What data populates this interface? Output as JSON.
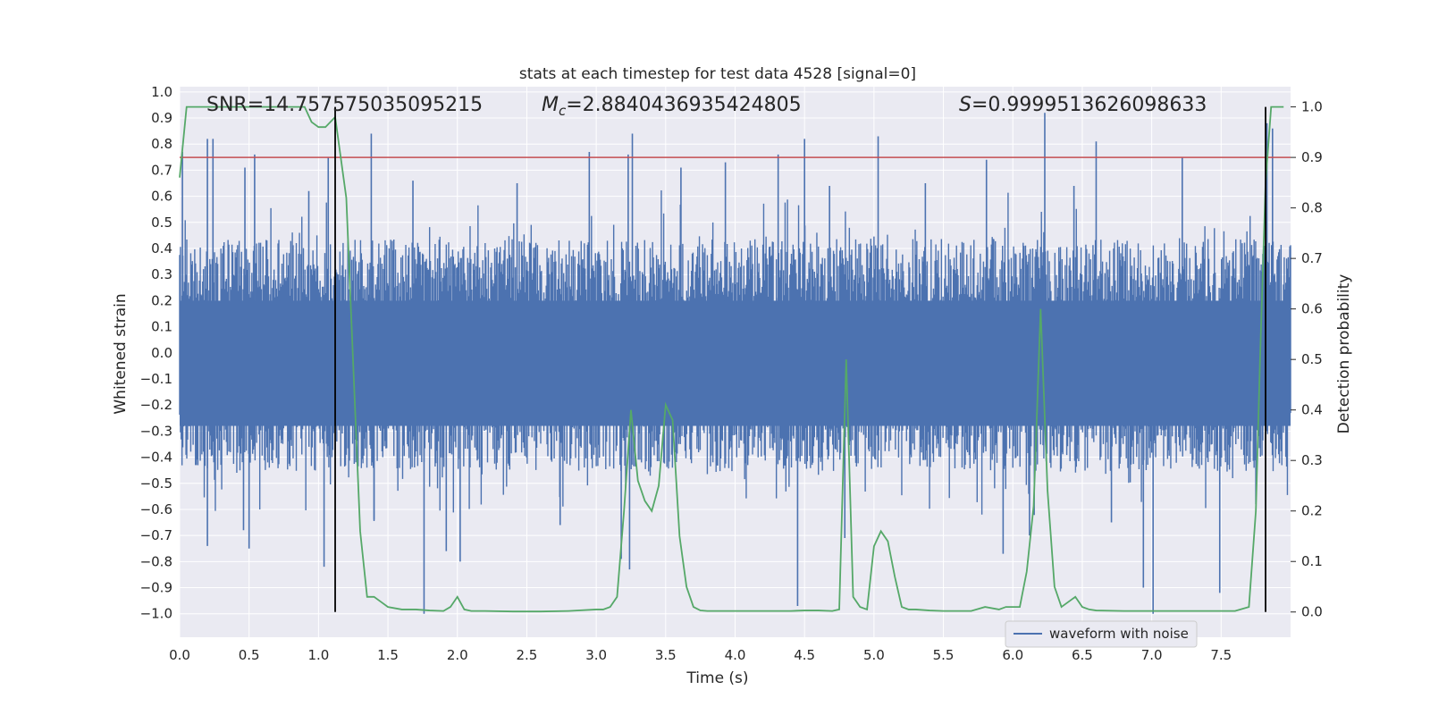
{
  "chart_data": {
    "type": "line",
    "title": "stats at each timestep for test data 4528 [signal=0]",
    "xlabel": "Time (s)",
    "ylabel_left": "Whitened strain",
    "ylabel_right": "Detection probability",
    "xlim": [
      0.0,
      8.0
    ],
    "ylim_left": [
      -1.09,
      1.02
    ],
    "ylim_right": [
      -0.05,
      1.04
    ],
    "x_ticks": [
      "0.0",
      "0.5",
      "1.0",
      "1.5",
      "2.0",
      "2.5",
      "3.0",
      "3.5",
      "4.0",
      "4.5",
      "5.0",
      "5.5",
      "6.0",
      "6.5",
      "7.0",
      "7.5"
    ],
    "y_ticks_left": [
      "1.0",
      "0.9",
      "0.8",
      "0.7",
      "0.6",
      "0.5",
      "0.4",
      "0.3",
      "0.2",
      "0.1",
      "0.0",
      "−0.1",
      "−0.2",
      "−0.3",
      "−0.4",
      "−0.5",
      "−0.6",
      "−0.7",
      "−0.8",
      "−0.9",
      "−1.0"
    ],
    "y_ticks_right": [
      "1.0",
      "0.9",
      "0.8",
      "0.7",
      "0.6",
      "0.5",
      "0.4",
      "0.3",
      "0.2",
      "0.1",
      "0.0"
    ],
    "grid": true,
    "legend": {
      "placement": "lower-right",
      "entries": [
        "waveform with noise"
      ]
    },
    "annotations": {
      "snr": "SNR=14.757575035095215",
      "mc_symbol": "M",
      "mc_subscript": "c",
      "mc_value": "=2.8840436935424805",
      "s_symbol": "S",
      "s_value": "=0.9999513626098633"
    },
    "threshold_probability": 0.9,
    "vertical_markers_time": [
      1.12,
      7.82
    ],
    "series": [
      {
        "name": "waveform with noise",
        "axis": "left",
        "color": "#4c72b0",
        "envelope_typical": 0.35,
        "spikes": [
          [
            0.02,
            0.77
          ],
          [
            0.2,
            0.82
          ],
          [
            0.24,
            0.82
          ],
          [
            0.2,
            -0.74
          ],
          [
            0.46,
            -0.68
          ],
          [
            0.47,
            0.71
          ],
          [
            0.5,
            -0.75
          ],
          [
            0.54,
            0.76
          ],
          [
            0.93,
            0.62
          ],
          [
            1.04,
            -0.82
          ],
          [
            1.07,
            0.75
          ],
          [
            1.38,
            0.84
          ],
          [
            1.4,
            -0.64
          ],
          [
            1.68,
            0.66
          ],
          [
            1.76,
            -1.0
          ],
          [
            1.92,
            -0.76
          ],
          [
            2.02,
            -0.8
          ],
          [
            2.43,
            0.65
          ],
          [
            2.74,
            -0.66
          ],
          [
            2.95,
            0.77
          ],
          [
            3.18,
            -0.79
          ],
          [
            3.23,
            0.76
          ],
          [
            3.24,
            -0.83
          ],
          [
            3.26,
            0.84
          ],
          [
            3.61,
            0.71
          ],
          [
            3.93,
            0.73
          ],
          [
            4.31,
            0.76
          ],
          [
            4.45,
            -0.97
          ],
          [
            4.5,
            0.82
          ],
          [
            4.68,
            0.64
          ],
          [
            4.79,
            -0.71
          ],
          [
            5.03,
            0.83
          ],
          [
            5.37,
            0.65
          ],
          [
            5.81,
            0.74
          ],
          [
            5.93,
            -0.77
          ],
          [
            6.12,
            -0.7
          ],
          [
            6.23,
            0.92
          ],
          [
            6.44,
            0.64
          ],
          [
            6.6,
            0.81
          ],
          [
            6.71,
            -0.65
          ],
          [
            6.94,
            -0.9
          ],
          [
            7.01,
            -1.0
          ],
          [
            7.22,
            0.75
          ],
          [
            7.49,
            -0.92
          ],
          [
            7.83,
            0.88
          ],
          [
            7.87,
            0.86
          ],
          [
            7.75,
            -0.58
          ]
        ]
      },
      {
        "name": "",
        "axis": "right",
        "color": "#55a868",
        "x": [
          0.0,
          0.05,
          0.1,
          0.2,
          0.3,
          0.4,
          0.5,
          0.6,
          0.7,
          0.8,
          0.9,
          0.95,
          1.0,
          1.05,
          1.12,
          1.2,
          1.3,
          1.35,
          1.4,
          1.45,
          1.5,
          1.6,
          1.7,
          1.8,
          1.9,
          1.95,
          2.0,
          2.05,
          2.1,
          2.2,
          2.4,
          2.6,
          2.8,
          3.0,
          3.05,
          3.1,
          3.15,
          3.2,
          3.25,
          3.3,
          3.35,
          3.4,
          3.45,
          3.5,
          3.55,
          3.6,
          3.65,
          3.7,
          3.75,
          3.8,
          3.9,
          4.0,
          4.2,
          4.4,
          4.5,
          4.6,
          4.7,
          4.75,
          4.8,
          4.85,
          4.9,
          4.95,
          5.0,
          5.05,
          5.1,
          5.15,
          5.2,
          5.25,
          5.3,
          5.4,
          5.5,
          5.7,
          5.8,
          5.9,
          5.95,
          6.05,
          6.1,
          6.15,
          6.2,
          6.25,
          6.3,
          6.35,
          6.4,
          6.45,
          6.5,
          6.55,
          6.6,
          6.8,
          7.0,
          7.2,
          7.4,
          7.6,
          7.7,
          7.75,
          7.78,
          7.82,
          7.86,
          7.9,
          7.95
        ],
        "values": [
          0.86,
          1.0,
          1.0,
          1.0,
          1.0,
          1.0,
          1.0,
          1.0,
          1.0,
          1.0,
          1.0,
          0.97,
          0.96,
          0.96,
          0.98,
          0.82,
          0.16,
          0.03,
          0.03,
          0.02,
          0.01,
          0.005,
          0.005,
          0.003,
          0.002,
          0.01,
          0.03,
          0.005,
          0.002,
          0.002,
          0.001,
          0.001,
          0.002,
          0.005,
          0.005,
          0.01,
          0.03,
          0.2,
          0.4,
          0.26,
          0.22,
          0.2,
          0.25,
          0.41,
          0.38,
          0.15,
          0.05,
          0.01,
          0.003,
          0.002,
          0.002,
          0.002,
          0.002,
          0.002,
          0.003,
          0.003,
          0.002,
          0.005,
          0.5,
          0.03,
          0.01,
          0.005,
          0.13,
          0.16,
          0.14,
          0.07,
          0.01,
          0.005,
          0.005,
          0.003,
          0.002,
          0.002,
          0.01,
          0.005,
          0.01,
          0.01,
          0.08,
          0.21,
          0.6,
          0.24,
          0.05,
          0.01,
          0.02,
          0.03,
          0.01,
          0.005,
          0.003,
          0.002,
          0.002,
          0.002,
          0.002,
          0.002,
          0.01,
          0.2,
          0.5,
          0.85,
          1.0,
          1.0,
          1.0
        ]
      },
      {
        "name": "",
        "axis": "right",
        "color": "#c44e52",
        "type": "hline",
        "value": 0.9
      }
    ]
  }
}
